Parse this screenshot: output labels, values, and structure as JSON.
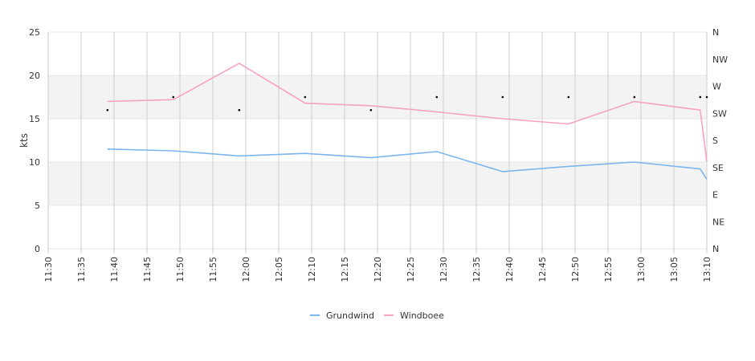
{
  "chart_data": {
    "type": "line",
    "title": "",
    "xlabel": "",
    "ylabel": "kts",
    "ylim": [
      0,
      25
    ],
    "y_ticks": [
      "0",
      "5",
      "10",
      "15",
      "20",
      "25"
    ],
    "y2_ticks": [
      "N",
      "NE",
      "E",
      "SE",
      "S",
      "SW",
      "W",
      "NW",
      "N"
    ],
    "x_ticks": [
      "11:30",
      "11:35",
      "11:40",
      "11:45",
      "11:50",
      "11:55",
      "12:00",
      "12:05",
      "12:10",
      "12:15",
      "12:20",
      "12:25",
      "12:30",
      "12:35",
      "12:40",
      "12:45",
      "12:50",
      "12:55",
      "13:00",
      "13:05",
      "13:10"
    ],
    "xlim": [
      "11:30",
      "13:10"
    ],
    "grid": true,
    "shaded_bands": [
      [
        5,
        10
      ],
      [
        15,
        20
      ]
    ],
    "legend_position": "bottom-center",
    "series": [
      {
        "name": "Grundwind",
        "color": "#7cb5ec",
        "x": [
          "11:39",
          "11:49",
          "11:59",
          "12:09",
          "12:19",
          "12:29",
          "12:39",
          "12:49",
          "12:59",
          "13:09",
          "13:10"
        ],
        "values": [
          11.5,
          11.3,
          10.7,
          11.0,
          10.5,
          11.2,
          8.9,
          9.5,
          10.0,
          9.2,
          8.0
        ]
      },
      {
        "name": "Windboee",
        "color": "#f7a1c4",
        "x": [
          "11:39",
          "11:49",
          "11:59",
          "12:09",
          "12:19",
          "12:29",
          "12:39",
          "12:49",
          "12:59",
          "13:09",
          "13:10"
        ],
        "values": [
          17.0,
          17.2,
          21.4,
          16.8,
          16.5,
          15.8,
          15.0,
          14.4,
          17.0,
          16.0,
          10.0
        ]
      }
    ],
    "direction_markers": {
      "x": [
        "11:39",
        "11:49",
        "11:59",
        "12:09",
        "12:19",
        "12:29",
        "12:39",
        "12:49",
        "12:59",
        "13:09",
        "13:10"
      ],
      "values": [
        16.0,
        17.5,
        16.0,
        17.5,
        16.0,
        17.5,
        17.5,
        17.5,
        17.5,
        17.5,
        17.5
      ]
    }
  }
}
